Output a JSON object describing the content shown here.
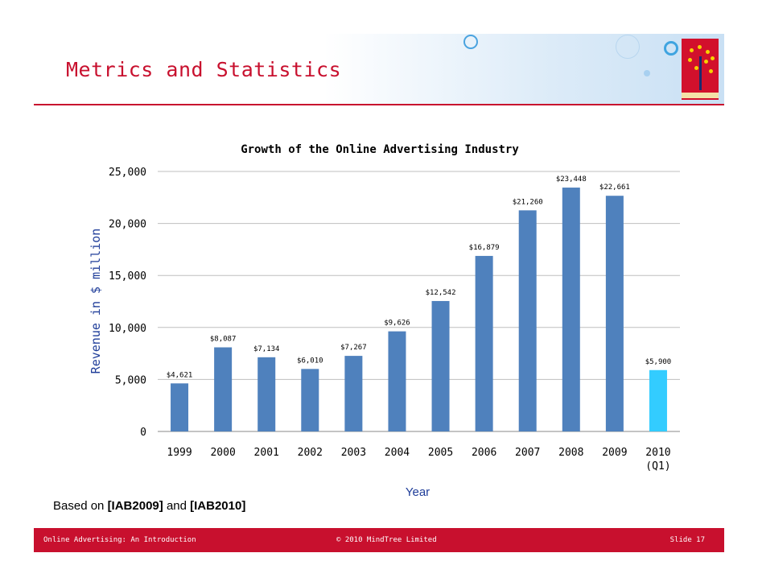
{
  "slide": {
    "title": "Metrics and Statistics",
    "source_prefix": "Based on",
    "ref1": "[IAB2009]",
    "and_text": "and",
    "ref2": "[IAB2010]"
  },
  "footer": {
    "left": "Online Advertising: An Introduction",
    "center": "© 2010 MindTree Limited",
    "right": "Slide 17"
  },
  "colors": {
    "accent": "#c8102e",
    "bar": "#4f81bd",
    "highlight_bar": "#33ccff",
    "axis_title": "#1f3d99"
  },
  "chart_data": {
    "type": "bar",
    "title": "Growth of the Online Advertising Industry",
    "xlabel": "Year",
    "ylabel": "Revenue in $ million",
    "categories": [
      "1999",
      "2000",
      "2001",
      "2002",
      "2003",
      "2004",
      "2005",
      "2006",
      "2007",
      "2008",
      "2009",
      "2010"
    ],
    "category_sublabels": [
      "",
      "",
      "",
      "",
      "",
      "",
      "",
      "",
      "",
      "",
      "",
      "(Q1)"
    ],
    "values": [
      4621,
      8087,
      7134,
      6010,
      7267,
      9626,
      12542,
      16879,
      21260,
      23448,
      22661,
      5900
    ],
    "value_labels": [
      "$4,621",
      "$8,087",
      "$7,134",
      "$6,010",
      "$7,267",
      "$9,626",
      "$12,542",
      "$16,879",
      "$21,260",
      "$23,448",
      "$22,661",
      "$5,900"
    ],
    "highlight_index": 11,
    "ylim": [
      0,
      25000
    ],
    "yticks": [
      0,
      5000,
      10000,
      15000,
      20000,
      25000
    ],
    "ytick_labels": [
      "0",
      "5,000",
      "10,000",
      "15,000",
      "20,000",
      "25,000"
    ],
    "grid": true,
    "legend": "none"
  }
}
